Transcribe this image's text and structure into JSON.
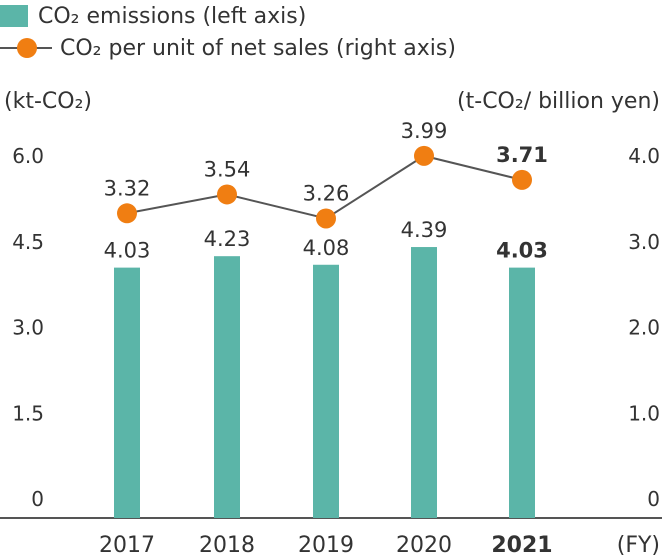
{
  "legend": {
    "bar_label": "CO₂ emissions (left axis)",
    "line_label": "CO₂ per unit of net sales (right axis)"
  },
  "axes": {
    "left_unit": "(kt-CO₂)",
    "right_unit": "(t-CO₂/ billion yen)",
    "x_unit": "(FY)"
  },
  "colors": {
    "bar": "#5bb5a8",
    "line": "#555555",
    "marker": "#f07e12",
    "axis": "#555555",
    "text": "#333333"
  },
  "chart_data": {
    "type": "bar",
    "categories": [
      "2017",
      "2018",
      "2019",
      "2020",
      "2021"
    ],
    "highlight_category": "2021",
    "series": [
      {
        "name": "CO₂ emissions (left axis)",
        "type": "bar",
        "axis": "left",
        "values": [
          4.03,
          4.23,
          4.08,
          4.39,
          4.03
        ],
        "labels": [
          "4.03",
          "4.23",
          "4.08",
          "4.39",
          "4.03"
        ]
      },
      {
        "name": "CO₂ per unit of net sales (right axis)",
        "type": "line",
        "axis": "right",
        "values": [
          3.32,
          3.54,
          3.26,
          3.99,
          3.71
        ],
        "labels": [
          "3.32",
          "3.54",
          "3.26",
          "3.99",
          "3.71"
        ]
      }
    ],
    "left_axis": {
      "ylim": [
        0,
        6.0
      ],
      "ticks": [
        "0",
        "1.5",
        "3.0",
        "4.5",
        "6.0"
      ]
    },
    "right_axis": {
      "ylim": [
        0,
        4.0
      ],
      "ticks": [
        "0",
        "1.0",
        "2.0",
        "3.0",
        "4.0"
      ]
    },
    "grid": false,
    "legend_position": "top-left"
  }
}
